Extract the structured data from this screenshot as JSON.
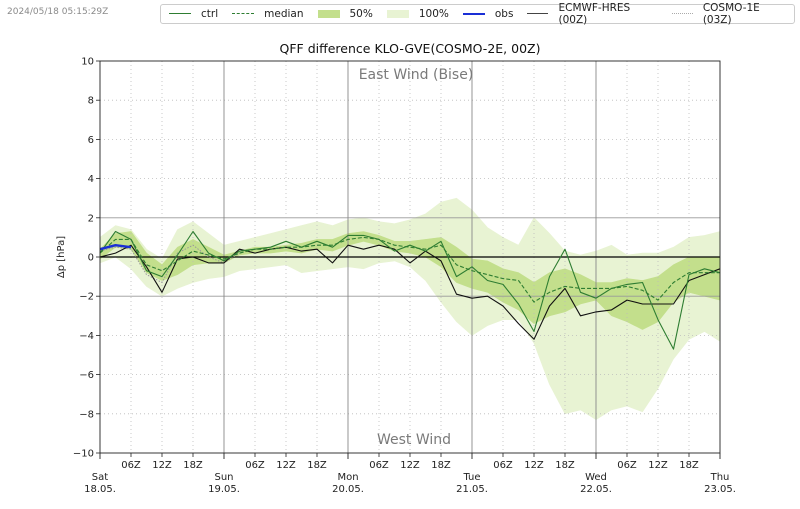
{
  "timestamp": "2024/05/18 05:15:29Z",
  "legend": [
    {
      "label": "ctrl",
      "kind": "line",
      "color": "#2e7d32",
      "dash": ""
    },
    {
      "label": "median",
      "kind": "line",
      "color": "#2e7d32",
      "dash": "4,2"
    },
    {
      "label": "50%",
      "kind": "fill",
      "color": "#c3df8c"
    },
    {
      "label": "100%",
      "kind": "fill",
      "color": "#e8f3d3"
    },
    {
      "label": "obs",
      "kind": "line",
      "color": "#1a2fd6",
      "dash": ""
    },
    {
      "label": "ECMWF-HRES (00Z)",
      "kind": "line",
      "color": "#444444",
      "dash": ""
    },
    {
      "label": "COSMO-1E (03Z)",
      "kind": "line",
      "color": "#aaaaaa",
      "dash": "1,1"
    }
  ],
  "chart_data": {
    "type": "line",
    "title": "QFF difference KLO-GVE(COSMO-2E, 00Z)",
    "ylabel": "Δp [hPa]",
    "xlabel": "",
    "ylim": [
      -10,
      10
    ],
    "xlim_hours": [
      0,
      120
    ],
    "yticks": [
      -10,
      -8,
      -6,
      -4,
      -2,
      0,
      2,
      4,
      6,
      8,
      10
    ],
    "ytick_labels": [
      "−10",
      "−8",
      "−6",
      "−4",
      "−2",
      "0",
      "2",
      "4",
      "6",
      "8",
      "10"
    ],
    "grid": true,
    "hour_ticks": [
      {
        "h": 6,
        "label": "06Z"
      },
      {
        "h": 12,
        "label": "12Z"
      },
      {
        "h": 18,
        "label": "18Z"
      },
      {
        "h": 30,
        "label": "06Z"
      },
      {
        "h": 36,
        "label": "12Z"
      },
      {
        "h": 42,
        "label": "18Z"
      },
      {
        "h": 54,
        "label": "06Z"
      },
      {
        "h": 60,
        "label": "12Z"
      },
      {
        "h": 66,
        "label": "18Z"
      },
      {
        "h": 78,
        "label": "06Z"
      },
      {
        "h": 84,
        "label": "12Z"
      },
      {
        "h": 90,
        "label": "18Z"
      },
      {
        "h": 102,
        "label": "06Z"
      },
      {
        "h": 108,
        "label": "12Z"
      },
      {
        "h": 114,
        "label": "18Z"
      }
    ],
    "day_ticks": [
      {
        "h": 0,
        "day": "Sat",
        "date": "18.05."
      },
      {
        "h": 24,
        "day": "Sun",
        "date": "19.05."
      },
      {
        "h": 48,
        "day": "Mon",
        "date": "20.05."
      },
      {
        "h": 72,
        "day": "Tue",
        "date": "21.05."
      },
      {
        "h": 96,
        "day": "Wed",
        "date": "22.05."
      },
      {
        "h": 120,
        "day": "Thu",
        "date": "23.05."
      }
    ],
    "annotations": [
      {
        "text": "East Wind (Bise)",
        "position": "top-center"
      },
      {
        "text": "West Wind",
        "position": "bottom-center"
      }
    ],
    "x_hours": [
      0,
      3,
      6,
      9,
      12,
      15,
      18,
      21,
      24,
      27,
      30,
      33,
      36,
      39,
      42,
      45,
      48,
      51,
      54,
      57,
      60,
      63,
      66,
      69,
      72,
      75,
      78,
      81,
      84,
      87,
      90,
      93,
      96,
      99,
      102,
      105,
      108,
      111,
      114,
      117,
      120
    ],
    "series": [
      {
        "name": "100% max",
        "values": [
          1.0,
          1.6,
          1.4,
          0.4,
          -0.1,
          1.4,
          1.8,
          1.2,
          0.6,
          0.8,
          1.0,
          1.2,
          1.4,
          1.6,
          1.8,
          1.6,
          1.9,
          2.0,
          1.8,
          1.7,
          1.9,
          2.2,
          2.8,
          3.0,
          2.4,
          1.5,
          1.0,
          0.6,
          2.0,
          1.2,
          0.3,
          0.1,
          0.3,
          0.6,
          0.1,
          0.2,
          0.2,
          0.5,
          1.0,
          1.1,
          1.3
        ]
      },
      {
        "name": "100% min",
        "values": [
          -0.3,
          0.0,
          -0.6,
          -1.5,
          -2.0,
          -1.6,
          -1.3,
          -1.1,
          -1.0,
          -0.7,
          -0.6,
          -0.5,
          -0.4,
          -0.8,
          -0.7,
          -0.6,
          -0.5,
          -0.6,
          -0.3,
          -0.2,
          -0.5,
          -1.2,
          -2.3,
          -3.3,
          -4.0,
          -3.5,
          -3.2,
          -3.2,
          -4.4,
          -6.5,
          -8.0,
          -7.8,
          -8.3,
          -7.8,
          -7.6,
          -7.9,
          -6.7,
          -5.2,
          -4.2,
          -3.8,
          -4.3
        ]
      },
      {
        "name": "50% max",
        "values": [
          0.4,
          1.2,
          1.3,
          0.2,
          -0.4,
          0.5,
          0.9,
          0.5,
          0.1,
          0.3,
          0.5,
          0.5,
          0.6,
          0.7,
          0.9,
          0.9,
          1.2,
          1.3,
          1.1,
          0.8,
          0.8,
          0.9,
          1.0,
          0.5,
          -0.1,
          -0.2,
          -0.6,
          -0.8,
          -1.3,
          -0.8,
          -0.6,
          -0.9,
          -1.3,
          -1.3,
          -1.1,
          -1.2,
          -1.0,
          -0.4,
          0.0,
          0.0,
          0.0
        ]
      },
      {
        "name": "50% min",
        "values": [
          -0.1,
          0.5,
          0.4,
          -0.8,
          -1.2,
          -0.9,
          -0.4,
          -0.3,
          -0.3,
          0.1,
          0.2,
          0.2,
          0.3,
          0.2,
          0.4,
          0.3,
          0.6,
          0.8,
          0.6,
          0.3,
          0.2,
          0.0,
          -0.5,
          -1.3,
          -1.6,
          -1.8,
          -2.3,
          -2.7,
          -3.4,
          -3.0,
          -2.8,
          -2.4,
          -2.2,
          -3.0,
          -3.3,
          -3.7,
          -3.3,
          -2.3,
          -1.8,
          -2.0,
          -2.2
        ]
      },
      {
        "name": "median",
        "values": [
          0.2,
          0.9,
          0.9,
          -0.4,
          -0.7,
          -0.2,
          0.3,
          0.1,
          -0.1,
          0.2,
          0.4,
          0.4,
          0.5,
          0.5,
          0.6,
          0.6,
          0.9,
          1.0,
          0.9,
          0.6,
          0.5,
          0.4,
          0.6,
          -0.4,
          -0.7,
          -0.9,
          -1.1,
          -1.2,
          -2.3,
          -1.8,
          -1.5,
          -1.6,
          -1.6,
          -1.6,
          -1.5,
          -1.7,
          -2.2,
          -1.3,
          -0.8,
          -0.8,
          -0.8
        ]
      },
      {
        "name": "ctrl",
        "values": [
          0.2,
          1.3,
          0.9,
          -0.7,
          -1.0,
          0.1,
          1.3,
          0.2,
          -0.2,
          0.3,
          0.4,
          0.5,
          0.8,
          0.5,
          0.8,
          0.5,
          1.1,
          1.1,
          0.9,
          0.3,
          0.6,
          0.3,
          0.8,
          -1.0,
          -0.5,
          -1.2,
          -1.4,
          -2.4,
          -3.8,
          -1.0,
          0.4,
          -1.8,
          -2.1,
          -1.6,
          -1.4,
          -1.3,
          -3.2,
          -4.7,
          -0.9,
          -0.6,
          -0.8
        ]
      },
      {
        "name": "ECMWF-HRES (00Z)",
        "values": [
          0.0,
          0.2,
          0.6,
          -0.5,
          -1.8,
          -0.1,
          0.0,
          -0.3,
          -0.3,
          0.4,
          0.2,
          0.4,
          0.5,
          0.3,
          0.4,
          -0.3,
          0.6,
          0.4,
          0.6,
          0.4,
          -0.3,
          0.3,
          -0.2,
          -1.9,
          -2.1,
          -2.0,
          -2.5,
          -3.4,
          -4.2,
          -2.5,
          -1.6,
          -3.0,
          -2.8,
          -2.7,
          -2.2,
          -2.4,
          -2.4,
          -2.4,
          -1.2,
          -0.9,
          -0.6
        ]
      },
      {
        "name": "COSMO-1E (03Z)",
        "values": [
          0.3,
          0.5,
          0.4,
          -0.9,
          -1.3,
          0.2,
          0.6,
          0.0,
          -0.3,
          0.2,
          null,
          null,
          null,
          null,
          null,
          null,
          null,
          null,
          null,
          null,
          null,
          null,
          null,
          null,
          null,
          null,
          null,
          null,
          null,
          null,
          null,
          null,
          null,
          null,
          null,
          null,
          null,
          null,
          null,
          null,
          null
        ]
      },
      {
        "name": "obs",
        "values": [
          0.4,
          0.6,
          0.5,
          null,
          null,
          null,
          null,
          null,
          null,
          null,
          null,
          null,
          null,
          null,
          null,
          null,
          null,
          null,
          null,
          null,
          null,
          null,
          null,
          null,
          null,
          null,
          null,
          null,
          null,
          null,
          null,
          null,
          null,
          null,
          null,
          null,
          null,
          null,
          null,
          null,
          null
        ]
      }
    ]
  }
}
